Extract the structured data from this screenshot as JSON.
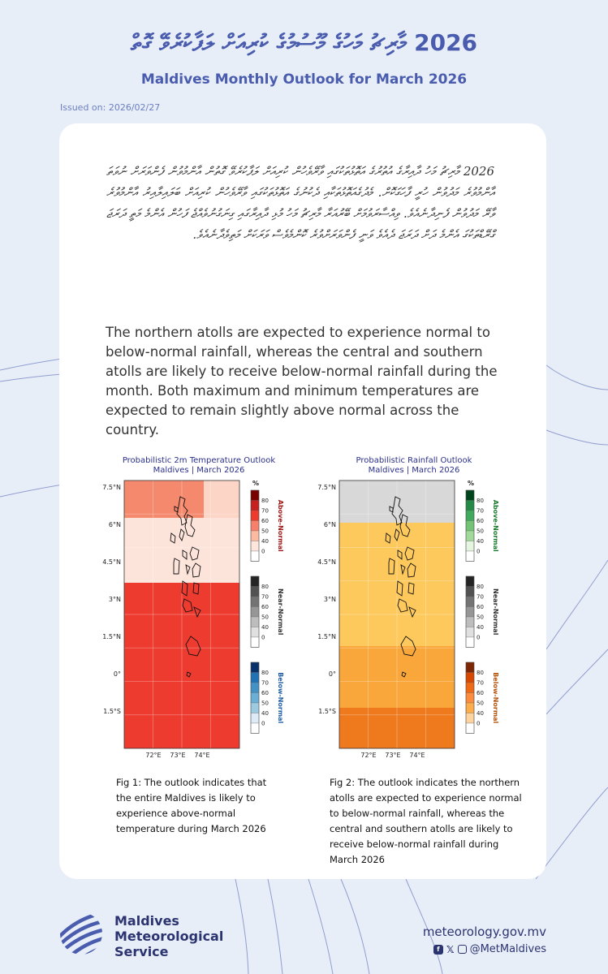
{
  "header": {
    "title_dhivehi": "2026 މާރިޗު މަހުގެ މޫސުމުގެ ކުރިއަށް ލަފާކުރެވޭ ގޮތް",
    "title_english": "Maldives Monthly Outlook for March 2026",
    "issued": "Issued on: 2026/02/27"
  },
  "body": {
    "dhivehi_paragraph": "2026 މާރިޗު މަހު ދާއިރާގެ އުތުރުގެ އަތޮޅުތަކުގައި ވާރޭވެހުން ކުރިއަށް ލަފާކުރެވޭ ގޮތުން އާންމުވުން ފެންވަރަށް ނުވަތަ އާންމުވުރެ މަދުވުން ހުރީ ފާހަގަކޮށް. މެދުގެއަތޮޅުތަކާއި ދެކުނުގެ އަތޮޅުތަކުގައި ވާރޭވެހުން ކުރިއަށް ބަލައިލާއިރު އާންމުވުރެ ވާރޭ މަދުވުން ފެނިދާނެއެވެ. ވިއްސާރަވުމަށް ބޭރުއަރާ މާރިޗު މަހު މުޅި ދާއިރާގައި ގިނަގުނުވެއްޖެ ފަހުން އެންމެ މަތީ ދަރަޖަ ގްރޭޑްތަކުގަ އެންމެ ދަށް ދަރަޖަ ދެއެވެ ވަނީ ފެންވަރަށްވުރެ ކޮންމެވެސް ވަރަކަށް މަތިވެދާނެއެވެ.",
    "english_paragraph": "The northern atolls are expected to experience normal to below-normal rainfall, whereas the central and southern atolls are likely to receive below-normal rainfall during the month. Both maximum and minimum temperatures are expected to remain slightly above normal across the country."
  },
  "figures": [
    {
      "title_line1": "Probabilistic 2m Temperature Outlook",
      "title_line2": "Maldives | March 2026",
      "lat_ticks": [
        "7.5°N",
        "6°N",
        "4.5°N",
        "3°N",
        "1.5°N",
        "0°",
        "1.5°S"
      ],
      "lon_ticks": [
        "72°E",
        "73°E",
        "74°E"
      ],
      "pct": "%",
      "legend_groups": [
        {
          "label": "Above-Normal",
          "label_color": "#a01818",
          "ticks": [
            "80",
            "70",
            "60",
            "50",
            "40",
            "0"
          ],
          "colors": [
            "#7a0000",
            "#c81f1f",
            "#ef3b2c",
            "#f8806a",
            "#fcbba1",
            "#ffe6dd",
            "#ffffff"
          ]
        },
        {
          "label": "Near-Normal",
          "label_color": "#333333",
          "ticks": [
            "80",
            "70",
            "60",
            "50",
            "40",
            "0"
          ],
          "colors": [
            "#252525",
            "#525252",
            "#737373",
            "#969696",
            "#bdbdbd",
            "#e0e0e0",
            "#ffffff"
          ]
        },
        {
          "label": "Below-Normal",
          "label_color": "#1f5fa8",
          "ticks": [
            "80",
            "70",
            "60",
            "50",
            "40",
            "0"
          ],
          "colors": [
            "#08306b",
            "#2171b5",
            "#4292c6",
            "#6baed6",
            "#9ecae1",
            "#deebf7",
            "#ffffff"
          ]
        }
      ],
      "caption": "Fig 1: The outlook indicates that the entire Maldives is likely to experience above-normal temperature during March 2026",
      "colors": {
        "top_left": "#f5896d",
        "top_right": "#fdd5c6",
        "middle": "#fde4da",
        "bottom": "#ee3b2f"
      }
    },
    {
      "title_line1": "Probabilistic Rainfall Outlook",
      "title_line2": "Maldives | March 2026",
      "lat_ticks": [
        "7.5°N",
        "6°N",
        "4.5°N",
        "3°N",
        "1.5°N",
        "0°",
        "1.5°S"
      ],
      "lon_ticks": [
        "72°E",
        "73°E",
        "74°E"
      ],
      "pct": "%",
      "legend_groups": [
        {
          "label": "Above-Normal",
          "label_color": "#1a7a2e",
          "ticks": [
            "80",
            "70",
            "60",
            "50",
            "40",
            "0"
          ],
          "colors": [
            "#00441b",
            "#238b45",
            "#41ab5d",
            "#74c476",
            "#a1d99b",
            "#e5f5e0",
            "#ffffff"
          ]
        },
        {
          "label": "Near-Normal",
          "label_color": "#333333",
          "ticks": [
            "80",
            "70",
            "60",
            "50",
            "40",
            "0"
          ],
          "colors": [
            "#252525",
            "#525252",
            "#737373",
            "#969696",
            "#bdbdbd",
            "#e0e0e0",
            "#ffffff"
          ]
        },
        {
          "label": "Below-Normal",
          "label_color": "#b5520b",
          "ticks": [
            "80",
            "70",
            "60",
            "50",
            "40",
            "0"
          ],
          "colors": [
            "#7f2704",
            "#d94801",
            "#f16913",
            "#fd8d3c",
            "#fdae4b",
            "#fdd49e",
            "#ffffff"
          ]
        }
      ],
      "caption": "Fig 2: The outlook indicates the northern atolls are expected to experience normal to below-normal rainfall, whereas the central and southern atolls are likely to receive below-normal rainfall during March 2026",
      "colors": {
        "top": "#d8d8d8",
        "middle": "#fec95c",
        "lower": "#f9a73a",
        "bottom": "#ef7a1e"
      }
    }
  ],
  "footer": {
    "org_line1": "Maldives",
    "org_line2": "Meteorological",
    "org_line3": "Service",
    "website": "meteorology.gov.mv",
    "handle": "@MetMaldives",
    "icons": [
      "facebook-icon",
      "x-icon",
      "instagram-icon"
    ]
  }
}
